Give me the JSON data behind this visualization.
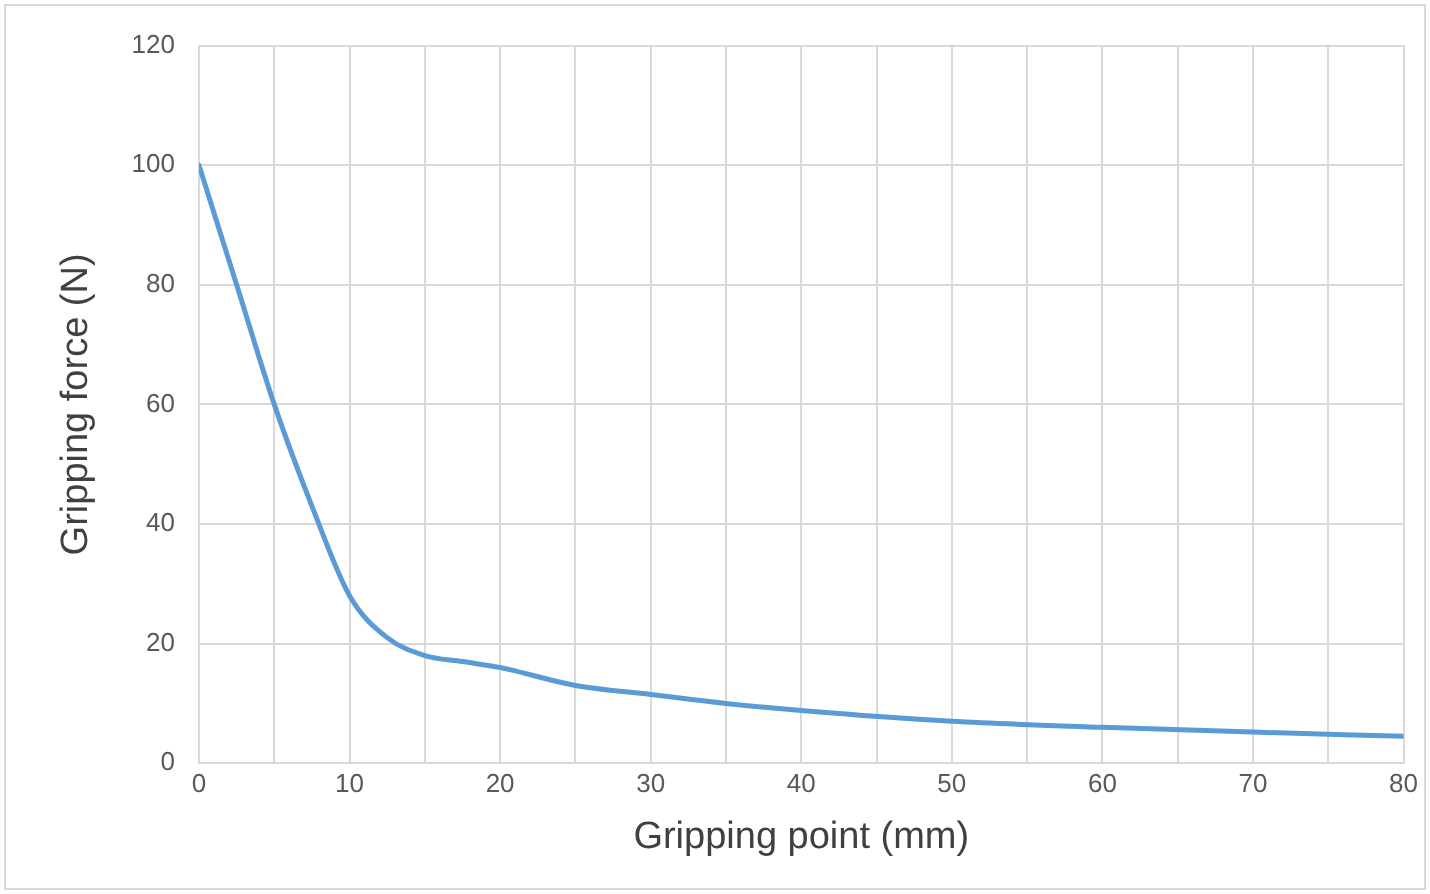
{
  "chart_data": {
    "type": "line",
    "xlabel": "Gripping point (mm)",
    "ylabel": "Gripping force (N)",
    "x": [
      0,
      2.5,
      5,
      7.5,
      10,
      12.5,
      15,
      17.5,
      20,
      25,
      30,
      35,
      40,
      50,
      60,
      70,
      80
    ],
    "series": [
      {
        "color": "#5b9bd5",
        "values": [
          100,
          80,
          60,
          43,
          28,
          21,
          18,
          17,
          16,
          13,
          11.5,
          10,
          8.8,
          7,
          6,
          5.2,
          4.5
        ]
      }
    ],
    "xlim": [
      0,
      80
    ],
    "xticks": [
      0,
      {
        "value": 5,
        "label": null
      },
      10,
      {
        "value": 15,
        "label": null
      },
      20,
      {
        "value": 25,
        "label": null
      },
      30,
      {
        "value": 35,
        "label": null
      },
      40,
      {
        "value": 45,
        "label": null
      },
      50,
      {
        "value": 55,
        "label": null
      },
      60,
      {
        "value": 65,
        "label": null
      },
      70,
      {
        "value": 75,
        "label": null
      },
      80
    ],
    "ylim": [
      0,
      120
    ],
    "yticks": [
      0,
      20,
      40,
      60,
      80,
      100,
      120
    ],
    "grid": true,
    "legend": false,
    "marker": "none",
    "line_style": "solid"
  }
}
